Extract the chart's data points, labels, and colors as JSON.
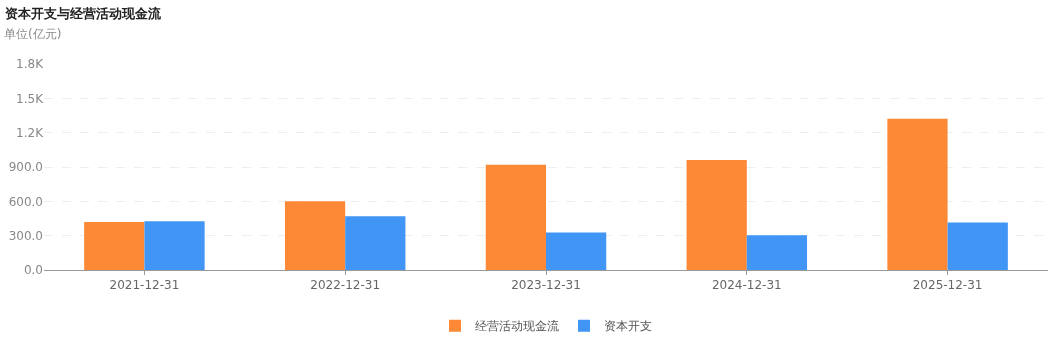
{
  "chart_data": {
    "type": "bar",
    "title": "资本开支与经营活动现金流",
    "ylabel": "单位(亿元)",
    "categories": [
      "2021-12-31",
      "2022-12-31",
      "2023-12-31",
      "2024-12-31",
      "2025-12-31"
    ],
    "series": [
      {
        "name": "经营活动现金流",
        "color": "#fd8836",
        "values": [
          419,
          600,
          920,
          961,
          1321
        ]
      },
      {
        "name": "资本开支",
        "color": "#4095f5",
        "values": [
          425,
          469,
          327,
          303,
          415
        ]
      }
    ],
    "ylim": [
      0,
      1800
    ],
    "yticks": [
      {
        "value": 0,
        "label": "0.0"
      },
      {
        "value": 300,
        "label": "300.0"
      },
      {
        "value": 600,
        "label": "600.0"
      },
      {
        "value": 900,
        "label": "900.0"
      },
      {
        "value": 1200,
        "label": "1.2K"
      },
      {
        "value": 1500,
        "label": "1.5K"
      },
      {
        "value": 1800,
        "label": "1.8K"
      }
    ],
    "grid": "y",
    "legend": "bottom"
  }
}
